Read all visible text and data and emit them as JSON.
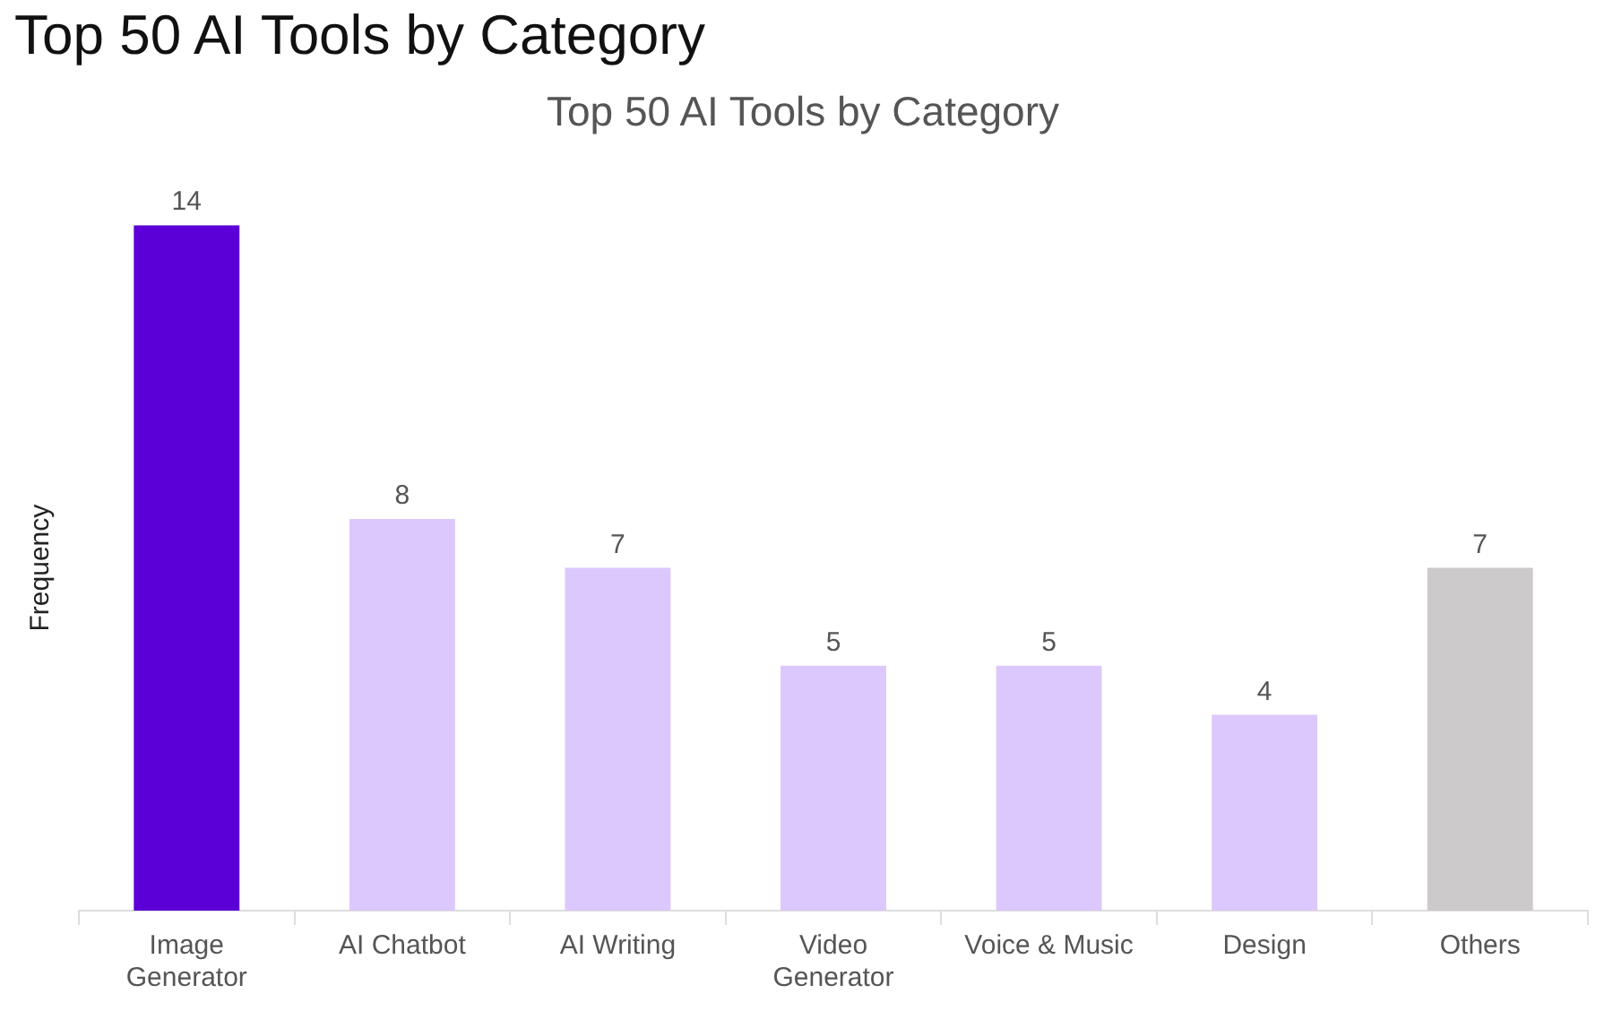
{
  "chart_data": {
    "type": "bar",
    "title": "Top 50 AI Tools by Category",
    "subtitle": "Top 50 AI Tools by Category",
    "ylabel": "Frequency",
    "categories": [
      "Image Generator",
      "AI Chatbot",
      "AI Writing",
      "Video Generator",
      "Voice & Music",
      "Design",
      "Others"
    ],
    "values": [
      14,
      8,
      7,
      5,
      5,
      4,
      7
    ],
    "colors": [
      "#5b00d6",
      "#dcc8fc",
      "#dcc8fc",
      "#dcc8fc",
      "#dcc8fc",
      "#dcc8fc",
      "#cccaca"
    ],
    "data_labels": true,
    "legend": false
  }
}
